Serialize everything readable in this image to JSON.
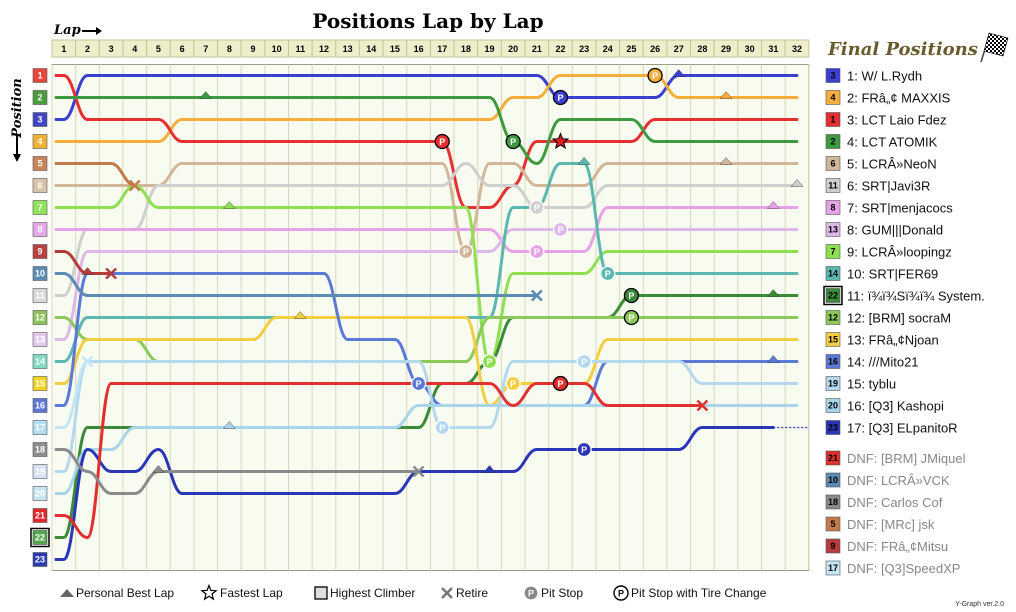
{
  "chart_data": {
    "type": "line",
    "title": "Positions Lap by Lap",
    "xlabel": "Lap",
    "ylabel": "Position",
    "laps": [
      1,
      2,
      3,
      4,
      5,
      6,
      7,
      8,
      9,
      10,
      11,
      12,
      13,
      14,
      15,
      16,
      17,
      18,
      19,
      20,
      21,
      22,
      23,
      24,
      25,
      26,
      27,
      28,
      29,
      30,
      31,
      32
    ],
    "positions": [
      1,
      2,
      3,
      4,
      5,
      6,
      7,
      8,
      9,
      10,
      11,
      12,
      13,
      14,
      15,
      16,
      17,
      18,
      19,
      20,
      21,
      22,
      23
    ],
    "grid_colors": [
      "#e8463c",
      "#4a9c3a",
      "#3f44c2",
      "#f0b234",
      "#c8845a",
      "#d8c4aa",
      "#8ee45a",
      "#e6a8e6",
      "#b84040",
      "#5a8cb4",
      "#d8d8d8",
      "#8cc45a",
      "#e6c8ec",
      "#82dcc4",
      "#f4d420",
      "#5a78d4",
      "#b4dcf4",
      "#8c8c8c",
      "#d4e4f4",
      "#c4e4f4",
      "#e0282c",
      "#52a84a",
      "#2a3ab0"
    ],
    "highest_climber_start": 22,
    "final_positions_title": "Final Positions",
    "series": [
      {
        "name": "1: W/ L.Rydh",
        "final": "3",
        "color": "#3b3fcf",
        "pos": [
          3,
          1,
          1,
          1,
          1,
          1,
          1,
          1,
          1,
          1,
          1,
          1,
          1,
          1,
          1,
          1,
          1,
          1,
          1,
          1,
          1,
          2,
          2,
          2,
          2,
          2,
          1,
          1,
          1,
          1,
          1,
          1
        ],
        "marks": [
          {
            "lap": 22,
            "type": "pit-tire"
          },
          {
            "lap": 27,
            "type": "best"
          }
        ]
      },
      {
        "name": "2: FRâ„¢ MAXXIS",
        "final": "4",
        "color": "#f5ad3c",
        "pos": [
          4,
          4,
          4,
          4,
          4,
          3,
          3,
          3,
          3,
          3,
          3,
          3,
          3,
          3,
          3,
          3,
          3,
          3,
          3,
          2,
          2,
          1,
          1,
          1,
          1,
          1,
          2,
          2,
          2,
          2,
          2,
          2
        ],
        "marks": [
          {
            "lap": 26,
            "type": "pit-tire"
          },
          {
            "lap": 29,
            "type": "best"
          }
        ]
      },
      {
        "name": "3: LCT Laio Fdez",
        "final": "1",
        "color": "#e43030",
        "pos": [
          1,
          3,
          3,
          3,
          3,
          4,
          4,
          4,
          4,
          4,
          4,
          4,
          4,
          4,
          4,
          4,
          4,
          7,
          7,
          6,
          4,
          4,
          4,
          4,
          4,
          3,
          3,
          3,
          3,
          3,
          3,
          3
        ],
        "marks": [
          {
            "lap": 17,
            "type": "pit-tire"
          },
          {
            "lap": 22,
            "type": "fastest"
          }
        ]
      },
      {
        "name": "4: LCT ATOMIK",
        "final": "2",
        "color": "#3e9a3e",
        "pos": [
          2,
          2,
          2,
          2,
          2,
          2,
          2,
          2,
          2,
          2,
          2,
          2,
          2,
          2,
          2,
          2,
          2,
          2,
          2,
          4,
          5,
          3,
          3,
          3,
          3,
          4,
          4,
          4,
          4,
          4,
          4,
          4
        ],
        "marks": [
          {
            "lap": 7,
            "type": "best"
          },
          {
            "lap": 20,
            "type": "pit-tire"
          }
        ]
      },
      {
        "name": "5: LCRÂ»NeoN",
        "final": "6",
        "color": "#d2b69a",
        "pos": [
          6,
          6,
          6,
          6,
          6,
          5,
          5,
          5,
          5,
          5,
          5,
          5,
          5,
          5,
          5,
          5,
          5,
          9,
          5,
          5,
          6,
          6,
          6,
          5,
          5,
          5,
          5,
          5,
          5,
          5,
          5,
          5
        ],
        "marks": [
          {
            "lap": 18,
            "type": "pit"
          },
          {
            "lap": 29,
            "type": "best"
          }
        ]
      },
      {
        "name": "6: SRT|Javi3R",
        "final": "11",
        "color": "#cfcfcf",
        "pos": [
          11,
          8,
          8,
          8,
          6,
          6,
          6,
          6,
          6,
          6,
          6,
          6,
          6,
          6,
          6,
          6,
          6,
          5,
          6,
          6,
          7,
          7,
          7,
          6,
          6,
          6,
          6,
          6,
          6,
          6,
          6,
          6
        ],
        "marks": [
          {
            "lap": 21,
            "type": "pit"
          },
          {
            "lap": 32,
            "type": "best"
          }
        ]
      },
      {
        "name": "7: SRT|menjacocs",
        "final": "8",
        "color": "#e7a3e7",
        "pos": [
          8,
          8,
          8,
          8,
          8,
          8,
          8,
          8,
          8,
          8,
          8,
          8,
          8,
          8,
          8,
          8,
          8,
          8,
          8,
          9,
          9,
          9,
          9,
          7,
          7,
          7,
          7,
          7,
          7,
          7,
          7,
          7
        ],
        "marks": [
          {
            "lap": 21,
            "type": "pit"
          },
          {
            "lap": 31,
            "type": "best"
          }
        ]
      },
      {
        "name": "8: GUM|||Donald",
        "final": "13",
        "color": "#ddb8e8",
        "pos": [
          13,
          9,
          9,
          9,
          9,
          9,
          9,
          9,
          9,
          9,
          9,
          9,
          9,
          9,
          9,
          9,
          9,
          9,
          9,
          8,
          8,
          8,
          8,
          8,
          8,
          8,
          8,
          8,
          8,
          8,
          8,
          8
        ],
        "marks": [
          {
            "lap": 22,
            "type": "pit"
          }
        ]
      },
      {
        "name": "9: LCRÂ»loopingz",
        "final": "7",
        "color": "#8ee050",
        "pos": [
          7,
          7,
          7,
          6,
          7,
          7,
          7,
          7,
          7,
          7,
          7,
          7,
          7,
          7,
          7,
          7,
          7,
          7,
          14,
          10,
          10,
          10,
          10,
          9,
          9,
          9,
          9,
          9,
          9,
          9,
          9,
          9
        ],
        "marks": [
          {
            "lap": 8,
            "type": "best"
          },
          {
            "lap": 19,
            "type": "pit"
          }
        ]
      },
      {
        "name": "10: SRT|FER69",
        "final": "14",
        "color": "#5ab8b0",
        "pos": [
          14,
          12,
          12,
          12,
          12,
          12,
          12,
          12,
          12,
          12,
          12,
          12,
          12,
          12,
          12,
          12,
          12,
          12,
          12,
          7,
          7,
          5,
          5,
          10,
          10,
          10,
          10,
          10,
          10,
          10,
          10,
          10
        ],
        "marks": [
          {
            "lap": 23,
            "type": "best"
          },
          {
            "lap": 24,
            "type": "pit"
          }
        ]
      },
      {
        "name": "11: ï¾ï¾Sï¾ï¾ System.",
        "final": "22",
        "color": "#3a8a38",
        "pos": [
          22,
          17,
          17,
          17,
          17,
          17,
          17,
          17,
          17,
          17,
          17,
          17,
          17,
          17,
          17,
          17,
          15,
          15,
          14,
          12,
          12,
          12,
          12,
          12,
          11,
          11,
          11,
          11,
          11,
          11,
          11,
          11
        ],
        "marks": [
          {
            "lap": 25,
            "type": "pit-tire"
          },
          {
            "lap": 31,
            "type": "best"
          }
        ]
      },
      {
        "name": "12: [BRM] socraM",
        "final": "12",
        "color": "#8cc85a",
        "pos": [
          12,
          13,
          13,
          13,
          14,
          14,
          14,
          14,
          14,
          14,
          14,
          14,
          14,
          14,
          14,
          14,
          14,
          14,
          12,
          12,
          12,
          12,
          12,
          12,
          12,
          12,
          12,
          12,
          12,
          12,
          12,
          12
        ],
        "marks": [
          {
            "lap": 25,
            "type": "pit-tire"
          }
        ]
      },
      {
        "name": "13: FRâ„¢Njoan",
        "final": "15",
        "color": "#f2cf40",
        "pos": [
          15,
          13,
          13,
          13,
          13,
          13,
          13,
          13,
          13,
          12,
          12,
          12,
          12,
          12,
          12,
          12,
          12,
          12,
          16,
          15,
          15,
          15,
          15,
          13,
          13,
          13,
          13,
          13,
          13,
          13,
          13,
          13
        ],
        "marks": [
          {
            "lap": 11,
            "type": "best"
          },
          {
            "lap": 20,
            "type": "pit"
          }
        ]
      },
      {
        "name": "14: ///Mito21",
        "final": "16",
        "color": "#5a7ad6",
        "pos": [
          16,
          10,
          10,
          10,
          10,
          10,
          10,
          10,
          10,
          10,
          10,
          10,
          13,
          13,
          13,
          15,
          16,
          16,
          16,
          16,
          16,
          16,
          16,
          14,
          14,
          14,
          14,
          14,
          14,
          14,
          14,
          14
        ],
        "marks": [
          {
            "lap": 16,
            "type": "pit"
          },
          {
            "lap": 31,
            "type": "best"
          }
        ]
      },
      {
        "name": "15: tyblu",
        "final": "19",
        "color": "#b4d8f0",
        "pos": [
          19,
          14,
          14,
          14,
          14,
          14,
          14,
          14,
          14,
          14,
          14,
          14,
          14,
          14,
          14,
          14,
          17,
          17,
          17,
          14,
          14,
          14,
          14,
          14,
          14,
          14,
          14,
          15,
          15,
          15,
          15,
          15
        ],
        "marks": [
          {
            "lap": 17,
            "type": "pit"
          },
          {
            "lap": 23,
            "type": "pit"
          }
        ]
      },
      {
        "name": "16: [Q3] Kashopi",
        "final": "20",
        "color": "#a8d4ec",
        "pos": [
          20,
          18,
          18,
          17,
          17,
          17,
          17,
          17,
          17,
          17,
          17,
          17,
          17,
          17,
          17,
          16,
          16,
          16,
          16,
          16,
          16,
          16,
          16,
          16,
          16,
          16,
          16,
          16,
          16,
          16,
          16,
          16
        ],
        "marks": [
          {
            "lap": 8,
            "type": "best"
          }
        ]
      },
      {
        "name": "17: [Q3] ELpanitoR",
        "final": "23",
        "color": "#2a36b8",
        "pos": [
          23,
          18,
          19,
          19,
          18,
          20,
          20,
          20,
          20,
          20,
          20,
          20,
          20,
          20,
          20,
          19,
          19,
          19,
          19,
          19,
          18,
          18,
          18,
          18,
          18,
          18,
          18,
          17,
          17,
          17,
          17
        ],
        "marks": [
          {
            "lap": 19,
            "type": "best"
          },
          {
            "lap": 23,
            "type": "pit"
          }
        ]
      }
    ],
    "dnfs": [
      {
        "name": "DNF: [BRM] JMiquel",
        "final": "21",
        "color": "#e03030",
        "pos": [
          21,
          22,
          15,
          15,
          15,
          15,
          15,
          15,
          15,
          15,
          15,
          15,
          15,
          15,
          15,
          15,
          15,
          15,
          15,
          16,
          15,
          15,
          15,
          16,
          16,
          16,
          16,
          16
        ],
        "marks": [
          {
            "lap": 22,
            "type": "pit-tire"
          },
          {
            "lap": 28,
            "type": "retire"
          }
        ]
      },
      {
        "name": "DNF: LCRÂ»VCK",
        "final": "10",
        "color": "#5a8cb4",
        "pos": [
          10,
          11,
          11,
          11,
          11,
          11,
          11,
          11,
          11,
          11,
          11,
          11,
          11,
          11,
          11,
          11,
          11,
          11,
          11,
          11,
          11
        ],
        "marks": [
          {
            "lap": 21,
            "type": "retire"
          }
        ]
      },
      {
        "name": "DNF: Carlos Cof",
        "final": "18",
        "color": "#8a8a8a",
        "pos": [
          18,
          19,
          20,
          20,
          19,
          19,
          19,
          19,
          19,
          19,
          19,
          19,
          19,
          19,
          19,
          19
        ],
        "marks": [
          {
            "lap": 5,
            "type": "best"
          },
          {
            "lap": 16,
            "type": "retire"
          }
        ]
      },
      {
        "name": "DNF: [MRc] jsk",
        "final": "5",
        "color": "#c47a4a",
        "pos": [
          5,
          5,
          5,
          6
        ],
        "marks": [
          {
            "lap": 4,
            "type": "retire"
          }
        ]
      },
      {
        "name": "DNF: FRâ„¢Mitsu",
        "final": "9",
        "color": "#b43c3c",
        "pos": [
          9,
          10,
          10
        ],
        "marks": [
          {
            "lap": 2,
            "type": "best"
          },
          {
            "lap": 3,
            "type": "retire"
          }
        ]
      },
      {
        "name": "DNF: [Q3]SpeedXP",
        "final": "17",
        "color": "#c4e6f4",
        "pos": [
          17,
          14
        ],
        "marks": [
          {
            "lap": 2,
            "type": "retire"
          }
        ]
      }
    ]
  },
  "legend": {
    "best": "Personal Best Lap",
    "fastest": "Fastest Lap",
    "climber": "Highest Climber",
    "retire": "Retire",
    "pit": "Pit Stop",
    "pit_tire": "Pit Stop with Tire Change"
  },
  "version": "Y-Graph ver.2.0"
}
